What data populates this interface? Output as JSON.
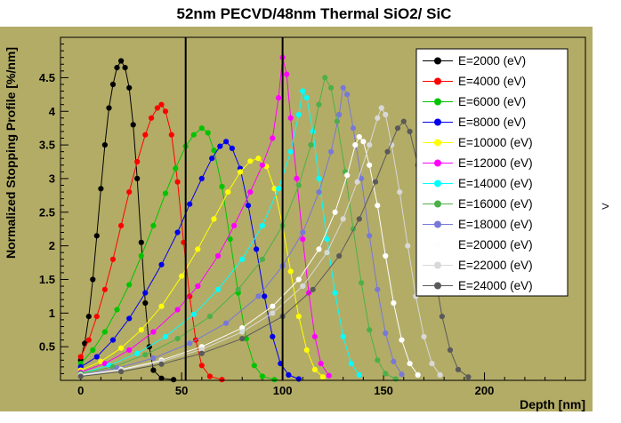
{
  "window": {
    "panel_arrow": ">"
  },
  "colors": {
    "canvas_bg": "#b3ac66",
    "page_bg": "#ffffff",
    "frame_border": "#000000",
    "legend_bg": "#ffffff",
    "boundary_line": "#000000"
  },
  "chart_data": {
    "type": "line",
    "title": "52nm PECVD/48nm Thermal SiO2/ SiC",
    "xlabel": "Depth [nm]",
    "ylabel": "Normalized Stopping Profile [%/nm]",
    "xlim": [
      -10,
      250
    ],
    "ylim": [
      0,
      5.1
    ],
    "xticks": [
      0,
      50,
      100,
      150,
      200
    ],
    "yticks": [
      0.5,
      1,
      1.5,
      2,
      2.5,
      3,
      3.5,
      4,
      4.5
    ],
    "x_minor_step": 10,
    "y_minor_step": 0.1,
    "grid": false,
    "legend_position": "top-right",
    "boundary_lines_x": [
      52,
      100
    ],
    "series": [
      {
        "name": "E=2000 (eV)",
        "color": "#000000",
        "points": [
          [
            0,
            0.3
          ],
          [
            2,
            0.55
          ],
          [
            4,
            0.95
          ],
          [
            6,
            1.5
          ],
          [
            8,
            2.15
          ],
          [
            10,
            2.85
          ],
          [
            12,
            3.5
          ],
          [
            14,
            4.05
          ],
          [
            16,
            4.4
          ],
          [
            18,
            4.65
          ],
          [
            20,
            4.75
          ],
          [
            22,
            4.65
          ],
          [
            24,
            4.35
          ],
          [
            26,
            3.8
          ],
          [
            28,
            3.0
          ],
          [
            30,
            2.05
          ],
          [
            32,
            1.15
          ],
          [
            34,
            0.5
          ],
          [
            36,
            0.15
          ],
          [
            40,
            0.03
          ],
          [
            46,
            0.01
          ]
        ]
      },
      {
        "name": "E=4000 (eV)",
        "color": "#ff0000",
        "points": [
          [
            0,
            0.35
          ],
          [
            4,
            0.6
          ],
          [
            8,
            0.95
          ],
          [
            12,
            1.35
          ],
          [
            16,
            1.8
          ],
          [
            20,
            2.3
          ],
          [
            24,
            2.8
          ],
          [
            28,
            3.25
          ],
          [
            32,
            3.65
          ],
          [
            35,
            3.9
          ],
          [
            38,
            4.05
          ],
          [
            40,
            4.1
          ],
          [
            42,
            4.0
          ],
          [
            45,
            3.65
          ],
          [
            48,
            2.95
          ],
          [
            51,
            2.05
          ],
          [
            54,
            1.25
          ],
          [
            57,
            0.6
          ],
          [
            60,
            0.22
          ],
          [
            64,
            0.06
          ],
          [
            70,
            0.01
          ]
        ]
      },
      {
        "name": "E=6000 (eV)",
        "color": "#00c400",
        "points": [
          [
            0,
            0.25
          ],
          [
            6,
            0.45
          ],
          [
            12,
            0.72
          ],
          [
            18,
            1.05
          ],
          [
            24,
            1.42
          ],
          [
            30,
            1.85
          ],
          [
            36,
            2.3
          ],
          [
            42,
            2.78
          ],
          [
            47,
            3.15
          ],
          [
            52,
            3.48
          ],
          [
            56,
            3.65
          ],
          [
            60,
            3.75
          ],
          [
            63,
            3.68
          ],
          [
            66,
            3.42
          ],
          [
            70,
            2.88
          ],
          [
            74,
            2.1
          ],
          [
            78,
            1.3
          ],
          [
            82,
            0.62
          ],
          [
            86,
            0.22
          ],
          [
            90,
            0.06
          ],
          [
            96,
            0.01
          ]
        ]
      },
      {
        "name": "E=8000 (eV)",
        "color": "#0000ee",
        "points": [
          [
            0,
            0.2
          ],
          [
            8,
            0.35
          ],
          [
            16,
            0.6
          ],
          [
            24,
            0.92
          ],
          [
            32,
            1.3
          ],
          [
            40,
            1.72
          ],
          [
            48,
            2.2
          ],
          [
            54,
            2.62
          ],
          [
            60,
            3.0
          ],
          [
            65,
            3.3
          ],
          [
            69,
            3.48
          ],
          [
            72,
            3.55
          ],
          [
            75,
            3.45
          ],
          [
            79,
            3.15
          ],
          [
            83,
            2.6
          ],
          [
            87,
            1.95
          ],
          [
            91,
            1.25
          ],
          [
            95,
            0.65
          ],
          [
            99,
            0.25
          ],
          [
            103,
            0.08
          ],
          [
            108,
            0.02
          ]
        ]
      },
      {
        "name": "E=10000 (eV)",
        "color": "#ffff00",
        "points": [
          [
            0,
            0.15
          ],
          [
            10,
            0.28
          ],
          [
            20,
            0.48
          ],
          [
            30,
            0.75
          ],
          [
            40,
            1.1
          ],
          [
            50,
            1.55
          ],
          [
            58,
            1.95
          ],
          [
            66,
            2.4
          ],
          [
            73,
            2.8
          ],
          [
            79,
            3.1
          ],
          [
            84,
            3.26
          ],
          [
            88,
            3.3
          ],
          [
            92,
            3.18
          ],
          [
            96,
            2.85
          ],
          [
            100,
            2.3
          ],
          [
            104,
            1.62
          ],
          [
            108,
            0.95
          ],
          [
            112,
            0.45
          ],
          [
            116,
            0.16
          ],
          [
            120,
            0.05
          ]
        ]
      },
      {
        "name": "E=12000 (eV)",
        "color": "#ff00ff",
        "points": [
          [
            0,
            0.12
          ],
          [
            12,
            0.25
          ],
          [
            24,
            0.45
          ],
          [
            36,
            0.72
          ],
          [
            48,
            1.05
          ],
          [
            58,
            1.4
          ],
          [
            68,
            1.85
          ],
          [
            76,
            2.3
          ],
          [
            84,
            2.8
          ],
          [
            90,
            3.2
          ],
          [
            95,
            3.6
          ],
          [
            98,
            4.2
          ],
          [
            100,
            4.8
          ],
          [
            102,
            4.55
          ],
          [
            104,
            3.9
          ],
          [
            107,
            3.0
          ],
          [
            110,
            2.1
          ],
          [
            113,
            1.3
          ],
          [
            116,
            0.65
          ],
          [
            119,
            0.25
          ],
          [
            123,
            0.07
          ]
        ]
      },
      {
        "name": "E=14000 (eV)",
        "color": "#00ffff",
        "points": [
          [
            0,
            0.1
          ],
          [
            14,
            0.22
          ],
          [
            28,
            0.4
          ],
          [
            42,
            0.65
          ],
          [
            56,
            0.98
          ],
          [
            68,
            1.35
          ],
          [
            80,
            1.8
          ],
          [
            90,
            2.3
          ],
          [
            98,
            2.85
          ],
          [
            104,
            3.4
          ],
          [
            108,
            3.95
          ],
          [
            110,
            4.3
          ],
          [
            112,
            4.2
          ],
          [
            115,
            3.7
          ],
          [
            118,
            3.0
          ],
          [
            122,
            2.1
          ],
          [
            126,
            1.3
          ],
          [
            130,
            0.65
          ],
          [
            134,
            0.25
          ],
          [
            138,
            0.08
          ]
        ]
      },
      {
        "name": "E=16000 (eV)",
        "color": "#4cb04a",
        "points": [
          [
            0,
            0.1
          ],
          [
            16,
            0.2
          ],
          [
            32,
            0.38
          ],
          [
            48,
            0.62
          ],
          [
            64,
            0.95
          ],
          [
            78,
            1.35
          ],
          [
            90,
            1.8
          ],
          [
            100,
            2.3
          ],
          [
            108,
            2.9
          ],
          [
            114,
            3.5
          ],
          [
            118,
            4.1
          ],
          [
            121,
            4.5
          ],
          [
            124,
            4.35
          ],
          [
            127,
            3.85
          ],
          [
            131,
            3.1
          ],
          [
            135,
            2.25
          ],
          [
            139,
            1.45
          ],
          [
            143,
            0.75
          ],
          [
            147,
            0.3
          ],
          [
            151,
            0.1
          ],
          [
            156,
            0.02
          ]
        ]
      },
      {
        "name": "E=18000 (eV)",
        "color": "#7878d8",
        "points": [
          [
            0,
            0.08
          ],
          [
            18,
            0.18
          ],
          [
            36,
            0.33
          ],
          [
            54,
            0.55
          ],
          [
            72,
            0.85
          ],
          [
            88,
            1.25
          ],
          [
            100,
            1.7
          ],
          [
            110,
            2.2
          ],
          [
            118,
            2.8
          ],
          [
            124,
            3.4
          ],
          [
            128,
            3.95
          ],
          [
            130,
            4.35
          ],
          [
            132,
            4.25
          ],
          [
            135,
            3.75
          ],
          [
            139,
            3.0
          ],
          [
            143,
            2.15
          ],
          [
            147,
            1.35
          ],
          [
            151,
            0.7
          ],
          [
            155,
            0.28
          ],
          [
            159,
            0.09
          ]
        ]
      },
      {
        "name": "E=20000 (eV)",
        "color": "#fdfdfd",
        "points": [
          [
            0,
            0.08
          ],
          [
            20,
            0.16
          ],
          [
            40,
            0.3
          ],
          [
            60,
            0.5
          ],
          [
            80,
            0.78
          ],
          [
            95,
            1.1
          ],
          [
            108,
            1.5
          ],
          [
            118,
            1.95
          ],
          [
            126,
            2.5
          ],
          [
            132,
            3.05
          ],
          [
            136,
            3.5
          ],
          [
            138,
            3.62
          ],
          [
            140,
            3.55
          ],
          [
            143,
            3.2
          ],
          [
            147,
            2.6
          ],
          [
            151,
            1.85
          ],
          [
            155,
            1.15
          ],
          [
            159,
            0.6
          ],
          [
            163,
            0.25
          ],
          [
            167,
            0.08
          ]
        ]
      },
      {
        "name": "E=22000 (eV)",
        "color": "#d8d8d8",
        "points": [
          [
            0,
            0.07
          ],
          [
            20,
            0.15
          ],
          [
            40,
            0.28
          ],
          [
            60,
            0.46
          ],
          [
            80,
            0.72
          ],
          [
            95,
            1.0
          ],
          [
            110,
            1.4
          ],
          [
            122,
            1.9
          ],
          [
            130,
            2.4
          ],
          [
            137,
            2.95
          ],
          [
            143,
            3.5
          ],
          [
            147,
            3.9
          ],
          [
            149,
            4.05
          ],
          [
            151,
            3.95
          ],
          [
            154,
            3.5
          ],
          [
            158,
            2.8
          ],
          [
            162,
            2.0
          ],
          [
            166,
            1.25
          ],
          [
            170,
            0.65
          ],
          [
            174,
            0.25
          ],
          [
            178,
            0.08
          ]
        ]
      },
      {
        "name": "E=24000 (eV)",
        "color": "#5a5a5a",
        "points": [
          [
            0,
            0.06
          ],
          [
            20,
            0.13
          ],
          [
            40,
            0.24
          ],
          [
            60,
            0.4
          ],
          [
            80,
            0.62
          ],
          [
            100,
            0.95
          ],
          [
            115,
            1.35
          ],
          [
            128,
            1.85
          ],
          [
            138,
            2.4
          ],
          [
            146,
            2.95
          ],
          [
            152,
            3.4
          ],
          [
            157,
            3.75
          ],
          [
            160,
            3.85
          ],
          [
            163,
            3.7
          ],
          [
            167,
            3.2
          ],
          [
            171,
            2.45
          ],
          [
            175,
            1.65
          ],
          [
            179,
            0.95
          ],
          [
            183,
            0.45
          ],
          [
            187,
            0.16
          ],
          [
            192,
            0.05
          ]
        ]
      }
    ]
  }
}
